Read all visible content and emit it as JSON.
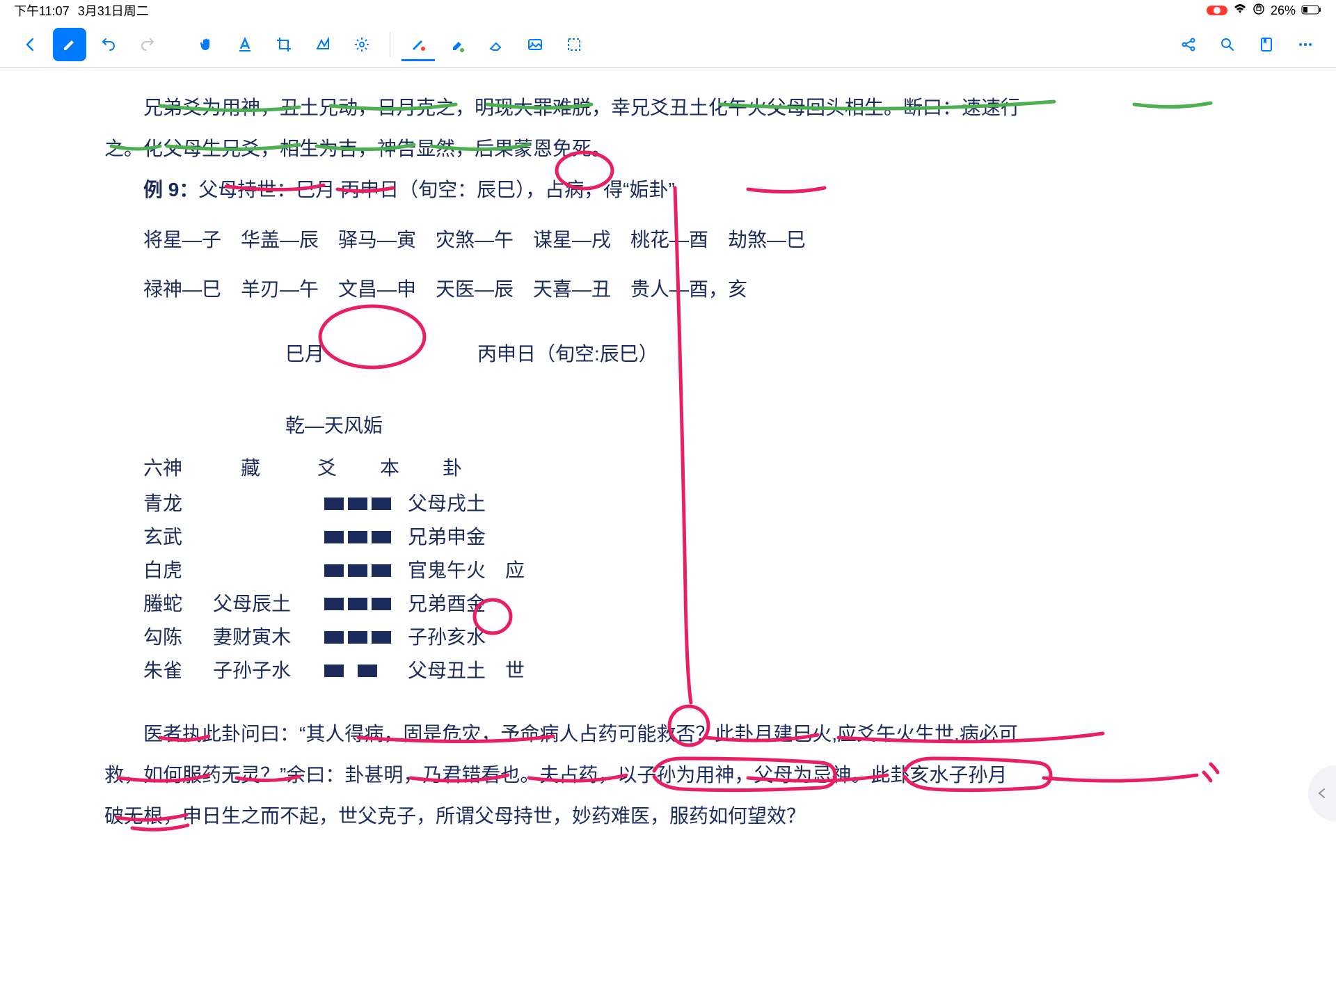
{
  "status": {
    "time": "下午11:07",
    "date": "3月31日周二",
    "battery": "26%"
  },
  "content": {
    "p1a": "兄弟爻为用神，丑土兄动，日月克之，明现大罪难脱，幸兄爻丑土化午火父母回头相生。断曰：速速行",
    "p1b": "之。化父母生兄爻，相生为吉，神告显然，后果蒙恩免死。",
    "example_label": "例 9：",
    "example_text": "父母持世：巳月 丙申日（旬空：辰巳），占病，得“姤卦”",
    "stars1": "将星—子　华盖—辰　驿马—寅　灾煞—午　谋星—戌　桃花—酉　劫煞—巳",
    "stars2": "禄神—巳　羊刃—午　文昌—申　天医—辰　天喜—丑　贵人—酉，亥",
    "month": "巳月",
    "day": "丙申日（旬空:辰巳）",
    "hex_title": "乾—天风姤",
    "header_god": "六神",
    "header_hidden": "藏",
    "header_yao": "爻",
    "header_ben": "本",
    "header_gua": "卦",
    "rows": [
      {
        "god": "青龙",
        "hidden": "",
        "ben": "父母戌土",
        "type": "yang",
        "mark": ""
      },
      {
        "god": "玄武",
        "hidden": "",
        "ben": "兄弟申金",
        "type": "yang",
        "mark": ""
      },
      {
        "god": "白虎",
        "hidden": "",
        "ben": "官鬼午火",
        "type": "yang",
        "mark": "应"
      },
      {
        "god": "螣蛇",
        "hidden": "父母辰土",
        "ben": "兄弟酉金",
        "type": "yang",
        "mark": ""
      },
      {
        "god": "勾陈",
        "hidden": "妻财寅木",
        "ben": "子孙亥水",
        "type": "yang",
        "mark": ""
      },
      {
        "god": "朱雀",
        "hidden": "子孙子水",
        "ben": "父母丑土",
        "type": "yin",
        "mark": "世"
      }
    ],
    "body1": "医者执此卦问曰：“其人得病，固是危灾，予命病人占药可能救否？此卦月建巳火,应爻午火生世,病必可",
    "body2": "救，如何服药无灵？”余曰：卦甚明，乃君错看也。夫占药，以子孙为用神，父母为忌神。此卦亥水子孙月",
    "body3": "破无根，申日生之而不起，世父克子，所谓父母持世，妙药难医，服药如何望效？"
  },
  "colors": {
    "text": "#1a2b5c",
    "accent": "#007aff",
    "red_anno": "#e91e63",
    "green_anno": "#4caf50"
  }
}
